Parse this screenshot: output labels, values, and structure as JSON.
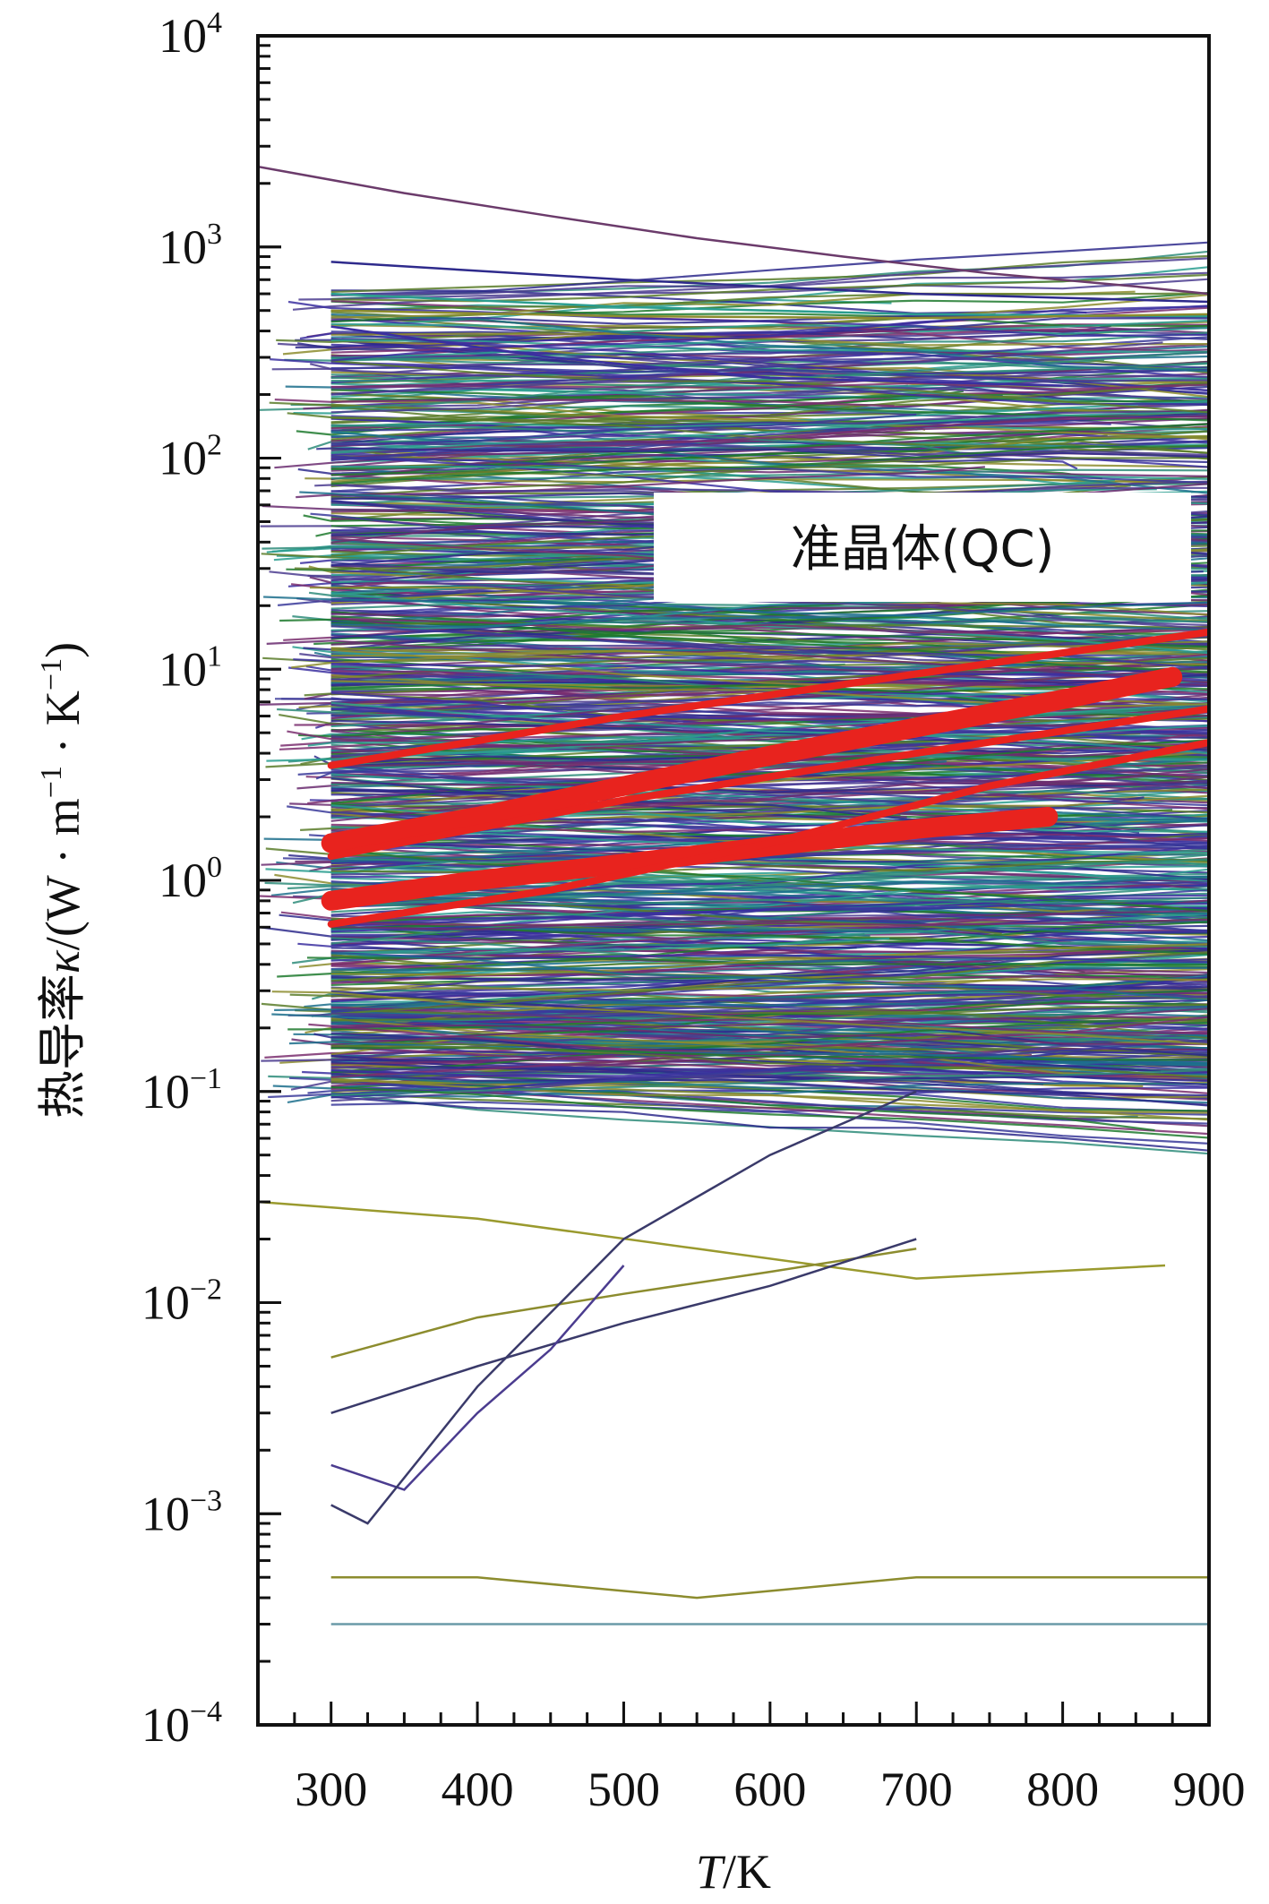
{
  "chart_data": {
    "type": "line",
    "title": "",
    "xlabel": "T/K",
    "ylabel": "热导率κ/(W · m⁻¹ · K⁻¹)",
    "xlabel_parts": {
      "var": "T",
      "unit": "/K"
    },
    "ylabel_parts": {
      "prefix": "热导率",
      "var": "κ",
      "unit_open": "/(W · m",
      "unit_m_exp": "−1",
      "unit_mid": " · K",
      "unit_k_exp": "−1",
      "unit_close": ")"
    },
    "xlim": [
      250,
      900
    ],
    "ylim": [
      0.0001,
      10000
    ],
    "yscale": "log",
    "grid": false,
    "x_ticks": [
      300,
      400,
      500,
      600,
      700,
      800,
      900
    ],
    "y_ticks": [
      {
        "value": 0.0001,
        "base": "10",
        "exp": "−4"
      },
      {
        "value": 0.001,
        "base": "10",
        "exp": "−3"
      },
      {
        "value": 0.01,
        "base": "10",
        "exp": "−2"
      },
      {
        "value": 0.1,
        "base": "10",
        "exp": "−1"
      },
      {
        "value": 1,
        "base": "10",
        "exp": "0"
      },
      {
        "value": 10,
        "base": "10",
        "exp": "1"
      },
      {
        "value": 100,
        "base": "10",
        "exp": "2"
      },
      {
        "value": 1000,
        "base": "10",
        "exp": "3"
      },
      {
        "value": 10000,
        "base": "10",
        "exp": "4"
      }
    ],
    "annotation": {
      "text": "准晶体(QC)"
    },
    "highlight_series_color": "#e8231e",
    "palette": [
      "#2e2a8c",
      "#3b2fa0",
      "#1f7a2e",
      "#2a9d8f",
      "#4b3c8f",
      "#6a2c70",
      "#1c6e8c",
      "#8c8c2e",
      "#5a7d2a",
      "#3a3a9a",
      "#7a2e6e",
      "#2e8c7a"
    ],
    "quasicrystal_series": [
      {
        "x": [
          300,
          400,
          500,
          600,
          700,
          800,
          875
        ],
        "y": [
          1.5,
          2.0,
          2.8,
          3.9,
          5.3,
          7.2,
          9.2
        ]
      },
      {
        "x": [
          300,
          400,
          500,
          600,
          700,
          790
        ],
        "y": [
          0.8,
          1.0,
          1.2,
          1.45,
          1.75,
          2.0
        ]
      },
      {
        "x": [
          300,
          450,
          600,
          750,
          900
        ],
        "y": [
          0.62,
          0.9,
          1.5,
          2.8,
          4.5
        ]
      },
      {
        "x": [
          300,
          500,
          700,
          900
        ],
        "y": [
          1.3,
          2.4,
          4.0,
          6.5
        ]
      },
      {
        "x": [
          300,
          500,
          700,
          900
        ],
        "y": [
          3.5,
          6.0,
          9.5,
          15.0
        ]
      }
    ],
    "named_series": [
      {
        "x": [
          250,
          350,
          450,
          550,
          650,
          750,
          850,
          900
        ],
        "y": [
          2400,
          1800,
          1400,
          1100,
          900,
          750,
          650,
          600
        ],
        "color": "#6b3b6b"
      },
      {
        "x": [
          300,
          500,
          700,
          900
        ],
        "y": [
          850,
          700,
          600,
          550
        ],
        "color": "#2e2a8c"
      },
      {
        "x": [
          300,
          500,
          700,
          900
        ],
        "y": [
          600,
          520,
          480,
          470
        ],
        "color": "#2a9d8f"
      },
      {
        "x": [
          300,
          500,
          700,
          900
        ],
        "y": [
          500,
          470,
          460,
          480
        ],
        "color": "#8c8c2e"
      },
      {
        "x": [
          300,
          450,
          600,
          800
        ],
        "y": [
          420,
          300,
          240,
          220
        ],
        "color": "#3b2fa0"
      },
      {
        "x": [
          300,
          400,
          550,
          700,
          900
        ],
        "y": [
          0.0005,
          0.0005,
          0.0004,
          0.0005,
          0.0005
        ],
        "color": "#8c8c2e"
      },
      {
        "x": [
          300,
          600,
          900
        ],
        "y": [
          0.0003,
          0.0003,
          0.0003
        ],
        "color": "#6a9aa8"
      },
      {
        "x": [
          250,
          400,
          550,
          700,
          870
        ],
        "y": [
          0.03,
          0.025,
          0.018,
          0.013,
          0.015
        ],
        "color": "#9a9a2e"
      },
      {
        "x": [
          300,
          400,
          500,
          600,
          700
        ],
        "y": [
          0.0055,
          0.0085,
          0.011,
          0.014,
          0.018
        ],
        "color": "#8c8c2e"
      },
      {
        "x": [
          300,
          400,
          500,
          600,
          700
        ],
        "y": [
          0.003,
          0.005,
          0.008,
          0.012,
          0.02
        ],
        "color": "#3a3a6a"
      },
      {
        "x": [
          300,
          350,
          400,
          450,
          500
        ],
        "y": [
          0.0017,
          0.0013,
          0.003,
          0.006,
          0.015
        ],
        "color": "#4b3c8f"
      },
      {
        "x": [
          300,
          325,
          400,
          500,
          600,
          700
        ],
        "y": [
          0.0011,
          0.0009,
          0.004,
          0.02,
          0.05,
          0.1
        ],
        "color": "#3a3a6a"
      }
    ]
  }
}
